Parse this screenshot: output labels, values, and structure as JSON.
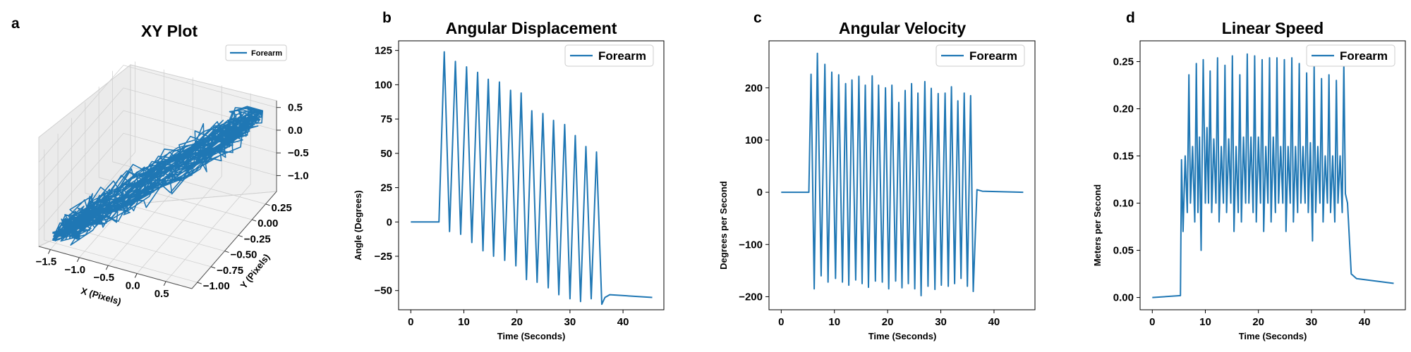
{
  "colors": {
    "series": "#1f77b4",
    "pane_floor": "#f2f2f2",
    "pane_side": "#ebebeb",
    "grid": "#d0d0d0"
  },
  "chart_data": [
    {
      "panel_label": "a",
      "type": "line3d",
      "title": "XY Plot",
      "xlabel": "X (Pixels)",
      "ylabel": "Y (Pixels)",
      "xlim": [
        -1.7,
        0.95
      ],
      "ylim": [
        -1.1,
        0.45
      ],
      "zlim": [
        -1.35,
        0.65
      ],
      "xticks": [
        -1.5,
        -1.0,
        -0.5,
        0.0,
        0.5
      ],
      "xtick_labels": [
        "−1.5",
        "−1.0",
        "−0.5",
        "0.0",
        "0.5"
      ],
      "yticks": [
        -1.0,
        -0.75,
        -0.5,
        -0.25,
        0.0,
        0.25
      ],
      "ytick_labels": [
        "−1.00",
        "−0.75",
        "−0.50",
        "−0.25",
        "0.00",
        "0.25"
      ],
      "zticks": [
        -1.0,
        -0.5,
        0.0,
        0.5
      ],
      "ztick_labels": [
        "−1.0",
        "−0.5",
        "0.0",
        "0.5"
      ],
      "legend": {
        "entries": [
          "Forearm"
        ],
        "position": "top-right"
      },
      "series": [
        {
          "name": "Forearm",
          "x_range": [
            -1.55,
            0.85
          ],
          "y_range": [
            -1.0,
            0.3
          ],
          "z_range": [
            -1.3,
            0.6
          ]
        }
      ]
    },
    {
      "panel_label": "b",
      "type": "line",
      "title": "Angular Displacement",
      "xlabel": "Time (Seconds)",
      "ylabel": "Angle (Degrees)",
      "xlim": [
        -2.3,
        47.7
      ],
      "ylim": [
        -64,
        132
      ],
      "xticks": [
        0,
        10,
        20,
        30,
        40
      ],
      "yticks": [
        -50,
        -25,
        0,
        25,
        50,
        75,
        100,
        125
      ],
      "ytick_labels": [
        "−50",
        "−25",
        "0",
        "25",
        "50",
        "75",
        "100",
        "125"
      ],
      "legend": {
        "entries": [
          "Forearm"
        ],
        "position": "top-right"
      },
      "series": [
        {
          "name": "Forearm",
          "x": [
            0,
            5.3,
            6.3,
            7.3,
            8.4,
            9.4,
            10.5,
            11.5,
            12.6,
            13.6,
            14.6,
            15.6,
            16.7,
            17.7,
            18.8,
            19.8,
            20.8,
            21.8,
            22.8,
            23.8,
            24.9,
            25.9,
            26.9,
            27.9,
            29.0,
            30.0,
            31.0,
            32.0,
            33.0,
            34.0,
            35.0,
            36.0,
            36.6,
            37.5,
            45.5
          ],
          "y": [
            0,
            0,
            124,
            -7,
            117,
            -9,
            113,
            -15,
            109,
            -21,
            104,
            -25,
            102,
            -28,
            96,
            -32,
            94,
            -42,
            81,
            -44,
            79,
            -48,
            74,
            -53,
            71,
            -56,
            63,
            -58,
            55,
            -56,
            51,
            -60,
            -55,
            -53,
            -55
          ]
        }
      ]
    },
    {
      "panel_label": "c",
      "type": "line",
      "title": "Angular Velocity",
      "xlabel": "Time (Seconds)",
      "ylabel": "Degrees per Second",
      "xlim": [
        -2.3,
        47.7
      ],
      "ylim": [
        -225,
        290
      ],
      "xticks": [
        0,
        10,
        20,
        30,
        40
      ],
      "yticks": [
        -200,
        -100,
        0,
        100,
        200
      ],
      "ytick_labels": [
        "−200",
        "−100",
        "0",
        "100",
        "200"
      ],
      "legend": {
        "entries": [
          "Forearm"
        ],
        "position": "top-right"
      },
      "series": [
        {
          "name": "Forearm",
          "x": [
            0,
            5.2,
            5.6,
            6.2,
            6.8,
            7.5,
            8.2,
            8.8,
            9.5,
            10.2,
            10.8,
            11.5,
            12.1,
            12.7,
            13.3,
            14.0,
            14.6,
            15.2,
            15.8,
            16.4,
            17.1,
            17.7,
            18.3,
            19.0,
            19.6,
            20.2,
            20.8,
            21.5,
            22.1,
            22.7,
            23.3,
            23.9,
            24.5,
            25.1,
            25.7,
            26.3,
            27.0,
            27.6,
            28.2,
            28.9,
            29.5,
            30.1,
            30.8,
            31.4,
            32.0,
            32.6,
            33.2,
            33.8,
            34.4,
            35.0,
            35.6,
            36.1,
            36.8,
            37.8,
            45.5
          ],
          "y": [
            0,
            0,
            226,
            -185,
            266,
            -160,
            245,
            -172,
            230,
            -165,
            225,
            -172,
            208,
            -178,
            215,
            -168,
            222,
            -175,
            205,
            -182,
            223,
            -170,
            205,
            -172,
            200,
            -185,
            205,
            -170,
            172,
            -183,
            195,
            -175,
            208,
            -185,
            190,
            -198,
            212,
            -180,
            199,
            -186,
            189,
            -178,
            190,
            -180,
            202,
            -175,
            175,
            -165,
            190,
            -180,
            185,
            -190,
            5,
            2,
            0
          ]
        }
      ]
    },
    {
      "panel_label": "d",
      "type": "line",
      "title": "Linear Speed",
      "xlabel": "Time (Seconds)",
      "ylabel": "Meters per Second",
      "xlim": [
        -2.3,
        47.7
      ],
      "ylim": [
        -0.013,
        0.272
      ],
      "xticks": [
        0,
        10,
        20,
        30,
        40
      ],
      "yticks": [
        0.0,
        0.05,
        0.1,
        0.15,
        0.2,
        0.25
      ],
      "ytick_labels": [
        "0.00",
        "0.05",
        "0.10",
        "0.15",
        "0.20",
        "0.25"
      ],
      "legend": {
        "entries": [
          "Forearm"
        ],
        "position": "top-right"
      },
      "series": [
        {
          "name": "Forearm",
          "x": [
            0,
            5.3,
            5.5,
            5.8,
            6.2,
            6.6,
            6.9,
            7.2,
            7.6,
            8.0,
            8.3,
            8.6,
            8.9,
            9.2,
            9.6,
            10.0,
            10.3,
            10.6,
            10.9,
            11.2,
            11.6,
            12.0,
            12.3,
            12.6,
            13.0,
            13.4,
            13.7,
            14.0,
            14.4,
            14.8,
            15.1,
            15.4,
            15.8,
            16.2,
            16.5,
            16.8,
            17.2,
            17.6,
            17.9,
            18.2,
            18.6,
            19.0,
            19.3,
            19.6,
            20.0,
            20.4,
            20.7,
            21.0,
            21.4,
            21.8,
            22.1,
            22.4,
            22.8,
            23.2,
            23.5,
            23.8,
            24.2,
            24.6,
            24.9,
            25.2,
            25.6,
            26.0,
            26.3,
            26.6,
            27.0,
            27.4,
            27.7,
            28.0,
            28.4,
            28.8,
            29.1,
            29.4,
            29.8,
            30.2,
            30.5,
            30.8,
            31.2,
            31.6,
            31.9,
            32.2,
            32.6,
            33.0,
            33.3,
            33.6,
            34.0,
            34.4,
            34.7,
            35.0,
            35.4,
            35.8,
            36.1,
            36.4,
            36.8,
            37.5,
            38.5,
            45.5
          ],
          "y": [
            0.0,
            0.002,
            0.146,
            0.07,
            0.15,
            0.09,
            0.236,
            0.1,
            0.16,
            0.08,
            0.248,
            0.09,
            0.17,
            0.05,
            0.252,
            0.1,
            0.18,
            0.1,
            0.24,
            0.09,
            0.168,
            0.1,
            0.254,
            0.08,
            0.16,
            0.1,
            0.246,
            0.09,
            0.168,
            0.1,
            0.256,
            0.07,
            0.16,
            0.09,
            0.236,
            0.08,
            0.17,
            0.1,
            0.258,
            0.1,
            0.17,
            0.09,
            0.256,
            0.08,
            0.17,
            0.1,
            0.252,
            0.07,
            0.16,
            0.1,
            0.254,
            0.08,
            0.17,
            0.09,
            0.254,
            0.1,
            0.16,
            0.1,
            0.252,
            0.07,
            0.16,
            0.1,
            0.254,
            0.08,
            0.16,
            0.09,
            0.248,
            0.1,
            0.16,
            0.1,
            0.238,
            0.09,
            0.164,
            0.06,
            0.246,
            0.09,
            0.16,
            0.1,
            0.232,
            0.08,
            0.15,
            0.1,
            0.236,
            0.09,
            0.15,
            0.08,
            0.23,
            0.1,
            0.15,
            0.09,
            0.248,
            0.11,
            0.1,
            0.025,
            0.02,
            0.015
          ]
        }
      ]
    }
  ]
}
